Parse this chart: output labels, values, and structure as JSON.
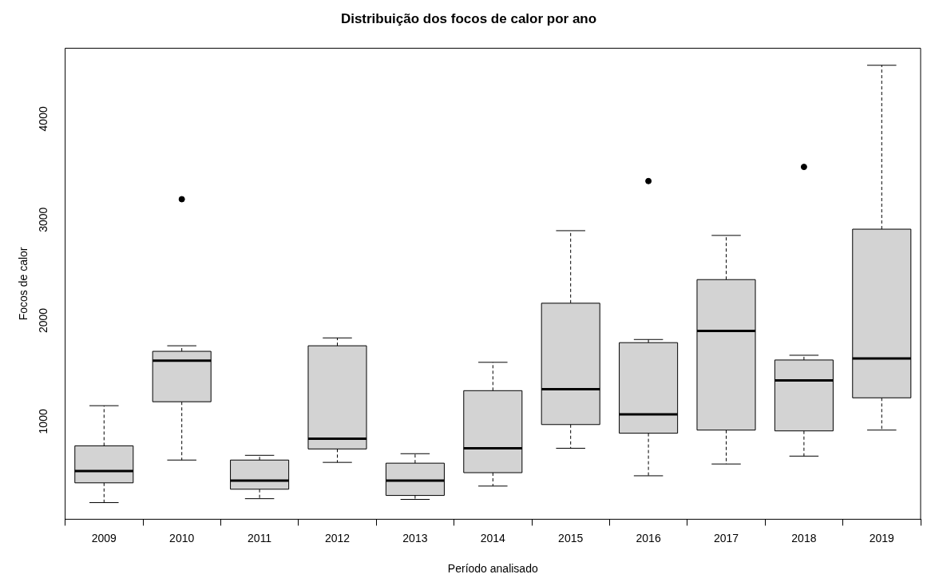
{
  "chart_data": {
    "type": "box",
    "title": "Distribuição dos focos de calor por ano",
    "xlabel": "Período analisado",
    "ylabel": "Focos de calor",
    "categories": [
      "2009",
      "2010",
      "2011",
      "2012",
      "2013",
      "2014",
      "2015",
      "2016",
      "2017",
      "2018",
      "2019"
    ],
    "color": "#d3d3d3",
    "ylim": [
      30,
      4700
    ],
    "yticks": [
      1000,
      2000,
      3000,
      4000
    ],
    "boxes": [
      {
        "low": 195,
        "q1": 391,
        "median": 508,
        "q3": 758,
        "high": 1156
      },
      {
        "low": 617,
        "q1": 1195,
        "median": 1602,
        "q3": 1695,
        "high": 1750,
        "outliers": [
          3203
        ]
      },
      {
        "low": 234,
        "q1": 328,
        "median": 414,
        "q3": 617,
        "high": 664
      },
      {
        "low": 594,
        "q1": 727,
        "median": 828,
        "q3": 1750,
        "high": 1828
      },
      {
        "low": 227,
        "q1": 266,
        "median": 414,
        "q3": 586,
        "high": 680
      },
      {
        "low": 359,
        "q1": 492,
        "median": 734,
        "q3": 1305,
        "high": 1586
      },
      {
        "low": 734,
        "q1": 969,
        "median": 1320,
        "q3": 2172,
        "high": 2891
      },
      {
        "low": 461,
        "q1": 883,
        "median": 1070,
        "q3": 1781,
        "high": 1812,
        "outliers": [
          3383
        ]
      },
      {
        "low": 578,
        "q1": 914,
        "median": 1898,
        "q3": 2406,
        "high": 2844
      },
      {
        "low": 656,
        "q1": 906,
        "median": 1406,
        "q3": 1609,
        "high": 1656,
        "outliers": [
          3523
        ]
      },
      {
        "low": 914,
        "q1": 1234,
        "median": 1625,
        "q3": 2906,
        "high": 4531
      }
    ]
  }
}
